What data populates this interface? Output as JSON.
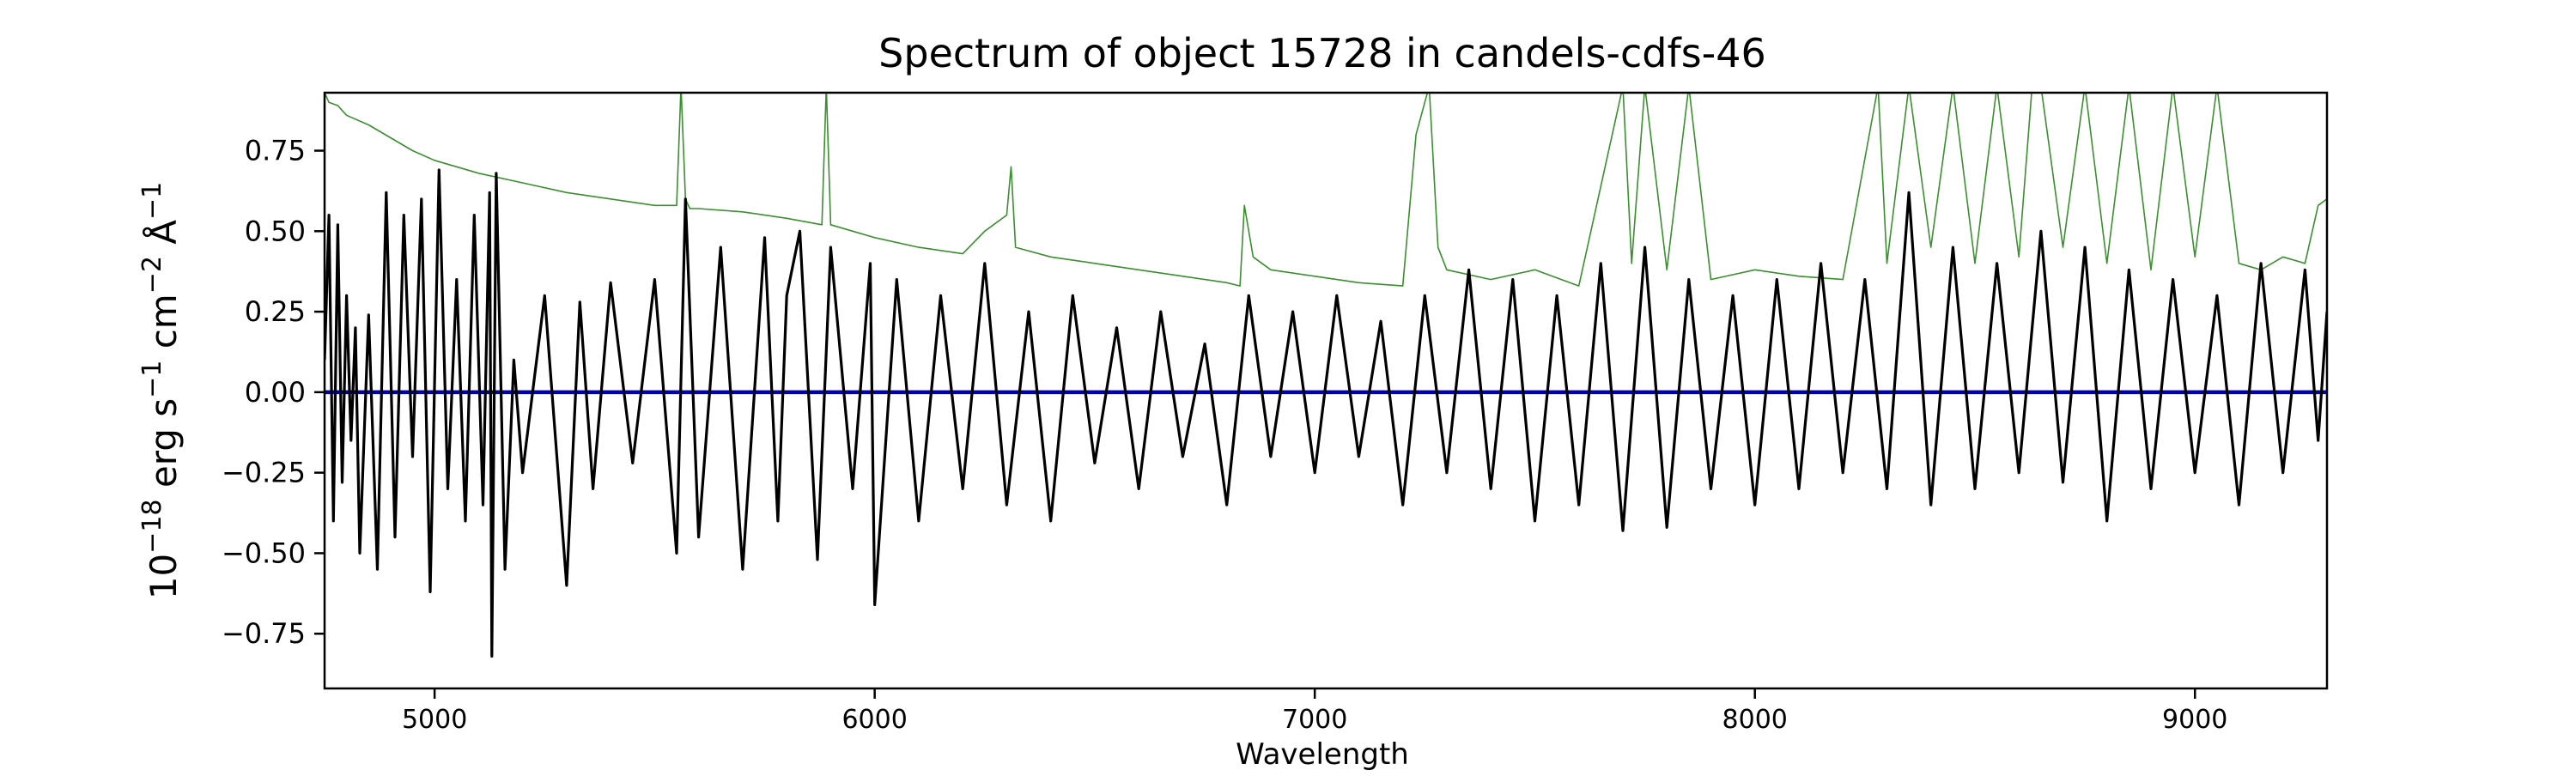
{
  "chart_data": {
    "type": "line",
    "title": "Spectrum of object 15728 in candels-cdfs-46",
    "xlabel": "Wavelength",
    "ylabel": {
      "base": "10",
      "exp": "−18",
      "unit1": " erg s",
      "exp1": "−1",
      "unit2": " cm",
      "exp2": "−2",
      "unit3": " Å",
      "exp3": "−1"
    },
    "xlim": [
      4750,
      9300
    ],
    "ylim": [
      -0.92,
      0.93
    ],
    "x_ticks": [
      5000,
      6000,
      7000,
      8000,
      9000
    ],
    "x_tick_labels": [
      "5000",
      "6000",
      "7000",
      "8000",
      "9000"
    ],
    "y_ticks": [
      -0.75,
      -0.5,
      -0.25,
      0.0,
      0.25,
      0.5,
      0.75
    ],
    "y_tick_labels": [
      "−0.75",
      "−0.50",
      "−0.25",
      "0.00",
      "0.25",
      "0.50",
      "0.75"
    ],
    "grid": false,
    "series": [
      {
        "key": "noise",
        "color": "#3a8f2f",
        "line_style": "thin",
        "x": [
          4750,
          4760,
          4780,
          4800,
          4850,
          4900,
          4950,
          5000,
          5100,
          5200,
          5300,
          5400,
          5500,
          5550,
          5560,
          5570,
          5580,
          5600,
          5700,
          5800,
          5880,
          5890,
          5900,
          5950,
          6000,
          6100,
          6200,
          6250,
          6300,
          6310,
          6320,
          6400,
          6500,
          6600,
          6700,
          6800,
          6830,
          6840,
          6860,
          6900,
          7000,
          7100,
          7200,
          7230,
          7260,
          7280,
          7300,
          7400,
          7500,
          7600,
          7700,
          7720,
          7750,
          7800,
          7850,
          7900,
          8000,
          8100,
          8200,
          8280,
          8300,
          8350,
          8400,
          8450,
          8500,
          8550,
          8600,
          8630,
          8650,
          8700,
          8750,
          8800,
          8850,
          8900,
          8950,
          9000,
          9050,
          9100,
          9150,
          9200,
          9250,
          9280,
          9300
        ],
        "y": [
          0.93,
          0.9,
          0.89,
          0.86,
          0.83,
          0.79,
          0.75,
          0.72,
          0.68,
          0.65,
          0.62,
          0.6,
          0.58,
          0.58,
          0.95,
          0.6,
          0.57,
          0.57,
          0.56,
          0.54,
          0.52,
          0.95,
          0.52,
          0.5,
          0.48,
          0.45,
          0.43,
          0.5,
          0.55,
          0.7,
          0.45,
          0.42,
          0.4,
          0.38,
          0.36,
          0.34,
          0.33,
          0.58,
          0.42,
          0.38,
          0.36,
          0.34,
          0.33,
          0.8,
          0.95,
          0.45,
          0.38,
          0.35,
          0.38,
          0.33,
          0.95,
          0.4,
          0.95,
          0.38,
          0.95,
          0.35,
          0.38,
          0.36,
          0.35,
          0.95,
          0.4,
          0.95,
          0.45,
          0.95,
          0.4,
          0.95,
          0.42,
          0.95,
          0.95,
          0.45,
          0.95,
          0.4,
          0.95,
          0.38,
          0.95,
          0.42,
          0.95,
          0.4,
          0.38,
          0.42,
          0.4,
          0.58,
          0.6
        ]
      },
      {
        "key": "model",
        "color": "#0000aa",
        "line_style": "medium",
        "x": [
          4750,
          9300
        ],
        "y": [
          0.0,
          0.0
        ]
      },
      {
        "key": "flux",
        "color": "#000000",
        "line_style": "thick",
        "x": [
          4750,
          4760,
          4770,
          4780,
          4790,
          4800,
          4810,
          4820,
          4830,
          4850,
          4870,
          4890,
          4910,
          4930,
          4950,
          4970,
          4990,
          5010,
          5030,
          5050,
          5070,
          5090,
          5110,
          5125,
          5130,
          5140,
          5160,
          5180,
          5200,
          5250,
          5300,
          5330,
          5360,
          5400,
          5450,
          5500,
          5550,
          5570,
          5600,
          5650,
          5700,
          5750,
          5780,
          5800,
          5830,
          5870,
          5900,
          5950,
          5990,
          6000,
          6050,
          6100,
          6150,
          6200,
          6250,
          6300,
          6350,
          6400,
          6450,
          6500,
          6550,
          6600,
          6650,
          6700,
          6750,
          6800,
          6850,
          6900,
          6950,
          7000,
          7050,
          7100,
          7150,
          7200,
          7250,
          7300,
          7350,
          7400,
          7450,
          7500,
          7550,
          7600,
          7650,
          7700,
          7750,
          7800,
          7850,
          7900,
          7950,
          8000,
          8050,
          8100,
          8150,
          8200,
          8250,
          8300,
          8350,
          8400,
          8450,
          8500,
          8550,
          8600,
          8650,
          8700,
          8750,
          8800,
          8850,
          8900,
          8950,
          9000,
          9050,
          9100,
          9150,
          9200,
          9250,
          9280,
          9300
        ],
        "y": [
          0.1,
          0.55,
          -0.4,
          0.52,
          -0.28,
          0.3,
          -0.15,
          0.2,
          -0.5,
          0.24,
          -0.55,
          0.62,
          -0.45,
          0.55,
          -0.2,
          0.6,
          -0.62,
          0.69,
          -0.3,
          0.35,
          -0.4,
          0.55,
          -0.35,
          0.62,
          -0.82,
          0.68,
          -0.55,
          0.1,
          -0.25,
          0.3,
          -0.6,
          0.28,
          -0.3,
          0.34,
          -0.22,
          0.35,
          -0.5,
          0.6,
          -0.45,
          0.45,
          -0.55,
          0.48,
          -0.4,
          0.3,
          0.5,
          -0.52,
          0.45,
          -0.3,
          0.4,
          -0.66,
          0.35,
          -0.4,
          0.3,
          -0.3,
          0.4,
          -0.35,
          0.25,
          -0.4,
          0.3,
          -0.22,
          0.2,
          -0.3,
          0.25,
          -0.2,
          0.15,
          -0.35,
          0.3,
          -0.2,
          0.25,
          -0.25,
          0.3,
          -0.2,
          0.22,
          -0.35,
          0.3,
          -0.25,
          0.38,
          -0.3,
          0.35,
          -0.4,
          0.3,
          -0.35,
          0.4,
          -0.43,
          0.45,
          -0.42,
          0.35,
          -0.3,
          0.3,
          -0.35,
          0.35,
          -0.3,
          0.4,
          -0.25,
          0.35,
          -0.3,
          0.62,
          -0.35,
          0.45,
          -0.3,
          0.4,
          -0.25,
          0.5,
          -0.28,
          0.45,
          -0.4,
          0.38,
          -0.3,
          0.35,
          -0.25,
          0.3,
          -0.35,
          0.4,
          -0.25,
          0.38,
          -0.15,
          0.25
        ]
      }
    ]
  }
}
